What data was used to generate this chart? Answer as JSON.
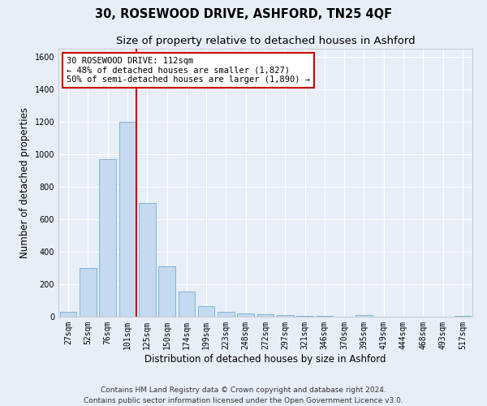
{
  "title": "30, ROSEWOOD DRIVE, ASHFORD, TN25 4QF",
  "subtitle": "Size of property relative to detached houses in Ashford",
  "xlabel": "Distribution of detached houses by size in Ashford",
  "ylabel": "Number of detached properties",
  "categories": [
    "27sqm",
    "52sqm",
    "76sqm",
    "101sqm",
    "125sqm",
    "150sqm",
    "174sqm",
    "199sqm",
    "223sqm",
    "248sqm",
    "272sqm",
    "297sqm",
    "321sqm",
    "346sqm",
    "370sqm",
    "395sqm",
    "419sqm",
    "444sqm",
    "468sqm",
    "493sqm",
    "517sqm"
  ],
  "values": [
    30,
    300,
    970,
    1200,
    700,
    310,
    155,
    65,
    30,
    20,
    15,
    10,
    5,
    5,
    0,
    8,
    0,
    0,
    0,
    0,
    5
  ],
  "bar_color": "#c5d9f0",
  "bar_edge_color": "#6baed6",
  "bar_width": 0.85,
  "vline_color": "#cc0000",
  "annotation_text": "30 ROSEWOOD DRIVE: 112sqm\n← 48% of detached houses are smaller (1,827)\n50% of semi-detached houses are larger (1,890) →",
  "annotation_box_color": "#ffffff",
  "annotation_box_edge": "#cc0000",
  "ylim": [
    0,
    1650
  ],
  "yticks": [
    0,
    200,
    400,
    600,
    800,
    1000,
    1200,
    1400,
    1600
  ],
  "background_color": "#e8eef8",
  "plot_bg_color": "#e8eef8",
  "footer": "Contains HM Land Registry data © Crown copyright and database right 2024.\nContains public sector information licensed under the Open Government Licence v3.0.",
  "title_fontsize": 10.5,
  "subtitle_fontsize": 9.5,
  "axis_label_fontsize": 8.5,
  "tick_fontsize": 7,
  "footer_fontsize": 6.5,
  "annotation_fontsize": 7.5
}
